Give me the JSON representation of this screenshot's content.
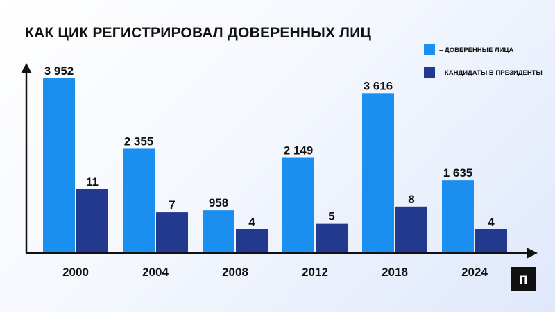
{
  "title": "КАК ЦИК РЕГИСТРИРОВАЛ ДОВЕРЕННЫХ ЛИЦ",
  "logo_letter": "п",
  "chart_data": {
    "type": "bar",
    "categories": [
      "2000",
      "2004",
      "2008",
      "2012",
      "2018",
      "2024"
    ],
    "series": [
      {
        "name": "– ДОВЕРЕННЫЕ ЛИЦА",
        "color": "#1a8ff0",
        "values": [
          3952,
          2355,
          958,
          2149,
          3616,
          1635
        ],
        "labels": [
          "3 952",
          "2 355",
          "958",
          "2 149",
          "3 616",
          "1 635"
        ]
      },
      {
        "name": "– КАНДИДАТЫ В ПРЕЗИДЕНТЫ",
        "color": "#23398e",
        "values": [
          11,
          7,
          4,
          5,
          8,
          4
        ],
        "labels": [
          "11",
          "7",
          "4",
          "5",
          "8",
          "4"
        ]
      }
    ],
    "legend_position": "top-right",
    "grid": false
  }
}
